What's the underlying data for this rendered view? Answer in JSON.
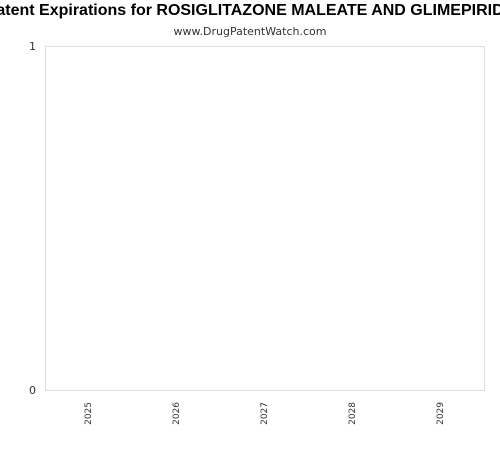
{
  "chart_data": {
    "type": "bar",
    "title": "Patent Expirations for ROSIGLITAZONE MALEATE AND GLIMEPIRIDE",
    "subtitle": "www.DrugPatentWatch.com",
    "categories": [
      "2025",
      "2026",
      "2027",
      "2028",
      "2029"
    ],
    "values": [
      0,
      0,
      0,
      0,
      0
    ],
    "ylim": [
      0,
      1
    ],
    "yticks": [
      "0",
      "1"
    ],
    "xlabel": "",
    "ylabel": "",
    "grid": false,
    "colors": {
      "frame": "#dddddd",
      "text": "#333333",
      "bar": "#4a7cc7"
    }
  }
}
